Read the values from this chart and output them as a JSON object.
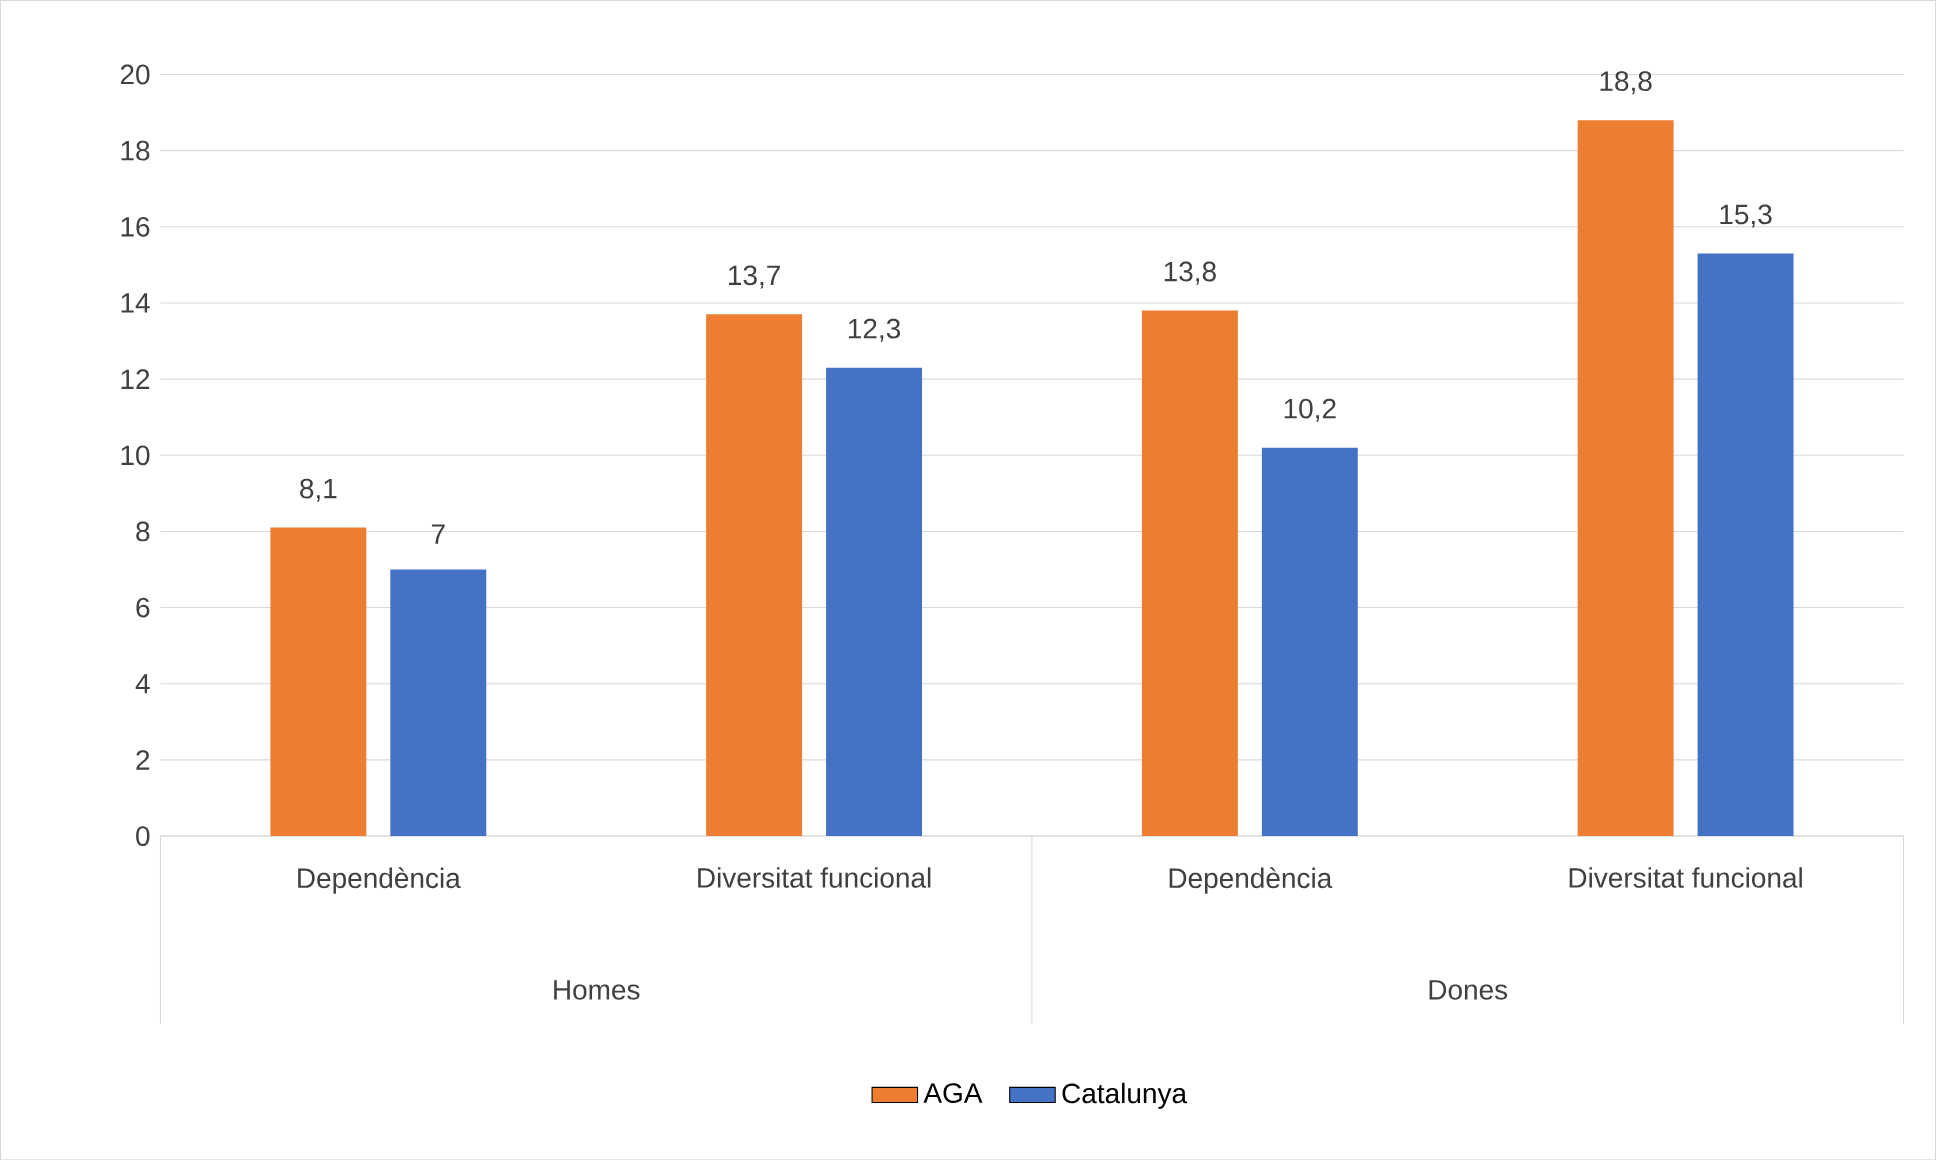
{
  "chart_data": {
    "type": "bar",
    "categories": [
      "Dependència",
      "Diversitat funcional",
      "Dependència",
      "Diversitat funcional"
    ],
    "series": [
      {
        "name": "AGA",
        "color": "#ed7d31",
        "values": [
          8.1,
          13.7,
          13.8,
          18.8
        ],
        "value_labels": [
          "8,1",
          "13,7",
          "13,8",
          "18,8"
        ]
      },
      {
        "name": "Catalunya",
        "color": "#4472c4",
        "values": [
          7,
          12.3,
          10.2,
          15.3
        ],
        "value_labels": [
          "7",
          "12,3",
          "10,2",
          "15,3"
        ]
      }
    ],
    "annotations": [
      "Homes",
      "Dones"
    ],
    "ylim": [
      0,
      20
    ],
    "yticks": [
      0,
      2,
      4,
      6,
      8,
      10,
      12,
      14,
      16,
      18,
      20
    ],
    "grid": "y",
    "legend": "bottom"
  }
}
